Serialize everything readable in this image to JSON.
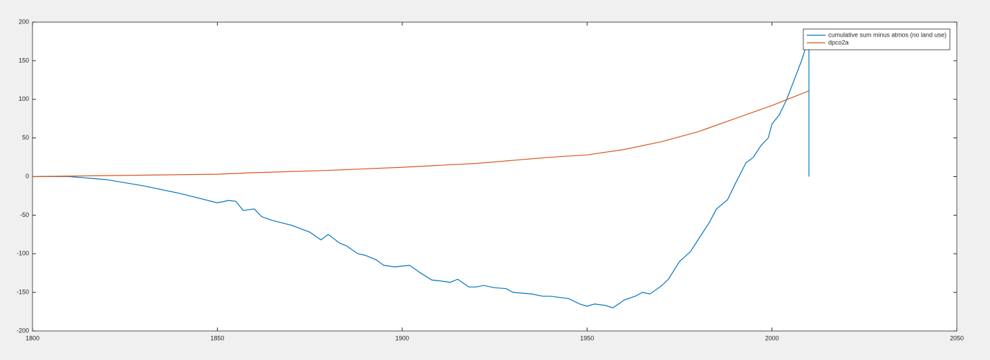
{
  "chart_data": {
    "type": "line",
    "xlim": [
      1800,
      2050
    ],
    "xticks": [
      1800,
      1850,
      1900,
      1950,
      2000,
      2050
    ],
    "ylim": [
      -200,
      200
    ],
    "yticks": [
      -200,
      -150,
      -100,
      -50,
      0,
      50,
      100,
      150,
      200
    ],
    "grid": false,
    "legend": "northeast",
    "series": [
      {
        "name": "cumulative sum minus atmos (no land use)",
        "color": "#0072bd",
        "x": [
          1800,
          1810,
          1820,
          1830,
          1840,
          1850,
          1853,
          1855,
          1857,
          1860,
          1862,
          1865,
          1870,
          1875,
          1878,
          1880,
          1883,
          1885,
          1888,
          1890,
          1893,
          1895,
          1898,
          1900,
          1902,
          1905,
          1908,
          1910,
          1913,
          1915,
          1918,
          1920,
          1922,
          1925,
          1928,
          1930,
          1935,
          1938,
          1940,
          1945,
          1948,
          1950,
          1952,
          1955,
          1957,
          1960,
          1963,
          1965,
          1967,
          1970,
          1972,
          1975,
          1978,
          1980,
          1983,
          1985,
          1988,
          1990,
          1993,
          1995,
          1997,
          1999,
          2000,
          2002,
          2004,
          2006,
          2008,
          2009,
          2010,
          2010
        ],
        "values": [
          0,
          0,
          -4,
          -12,
          -22,
          -34,
          -31,
          -32,
          -44,
          -42,
          -52,
          -57,
          -63,
          -72,
          -82,
          -75,
          -86,
          -90,
          -100,
          -102,
          -108,
          -115,
          -117,
          -116,
          -115,
          -125,
          -134,
          -135,
          -137,
          -133,
          -143,
          -143,
          -141,
          -144,
          -145,
          -150,
          -152,
          -155,
          -155,
          -158,
          -165,
          -168,
          -165,
          -167,
          -170,
          -160,
          -155,
          -150,
          -152,
          -142,
          -133,
          -110,
          -97,
          -82,
          -60,
          -42,
          -30,
          -10,
          18,
          25,
          40,
          50,
          68,
          80,
          100,
          125,
          150,
          165,
          167,
          0
        ]
      },
      {
        "name": "dpco2a",
        "color": "#d95319",
        "x": [
          1800,
          1850,
          1860,
          1880,
          1900,
          1920,
          1940,
          1950,
          1960,
          1970,
          1980,
          1990,
          2000,
          2010
        ],
        "values": [
          0,
          3,
          5,
          8,
          12,
          17,
          25,
          28,
          35,
          45,
          58,
          75,
          92,
          111
        ]
      }
    ]
  }
}
